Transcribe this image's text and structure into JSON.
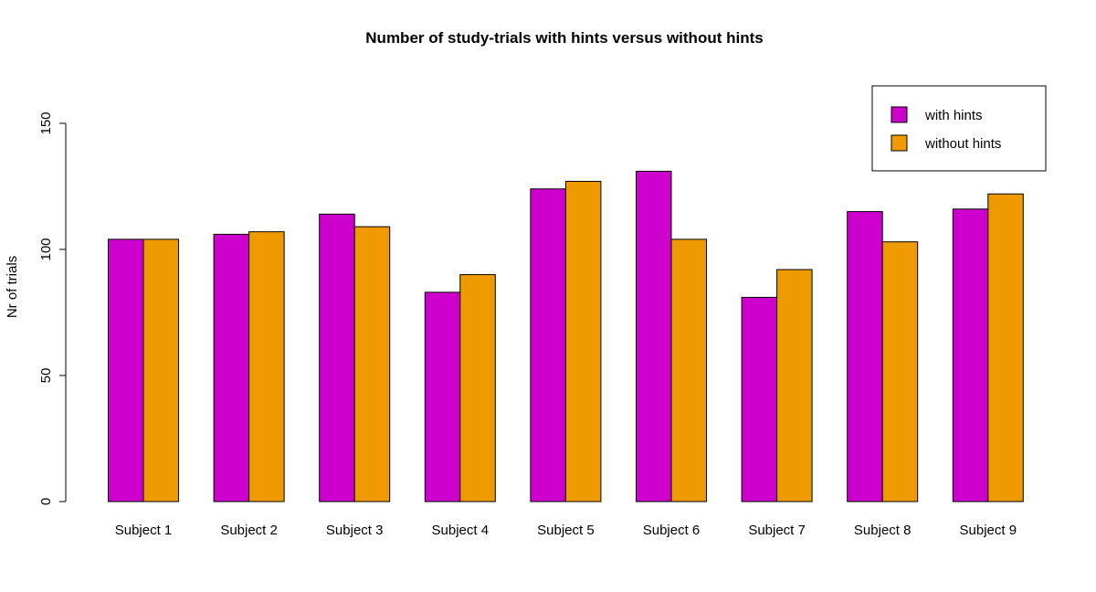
{
  "chart_data": {
    "type": "bar",
    "title": "Number of study-trials with hints versus without hints",
    "xlabel": "",
    "ylabel": "Nr of trials",
    "categories": [
      "Subject 1",
      "Subject 2",
      "Subject 3",
      "Subject 4",
      "Subject 5",
      "Subject 6",
      "Subject 7",
      "Subject 8",
      "Subject 9"
    ],
    "series": [
      {
        "name": "with hints",
        "color": "#CD00CD",
        "values": [
          104,
          106,
          114,
          83,
          124,
          131,
          81,
          115,
          116
        ]
      },
      {
        "name": "without hints",
        "color": "#EE9A00",
        "values": [
          104,
          107,
          109,
          90,
          127,
          104,
          92,
          103,
          122
        ]
      }
    ],
    "yticks": [
      0,
      50,
      100,
      150
    ],
    "ylim": [
      0,
      150
    ],
    "grid": false,
    "legend_position": "top-right"
  }
}
